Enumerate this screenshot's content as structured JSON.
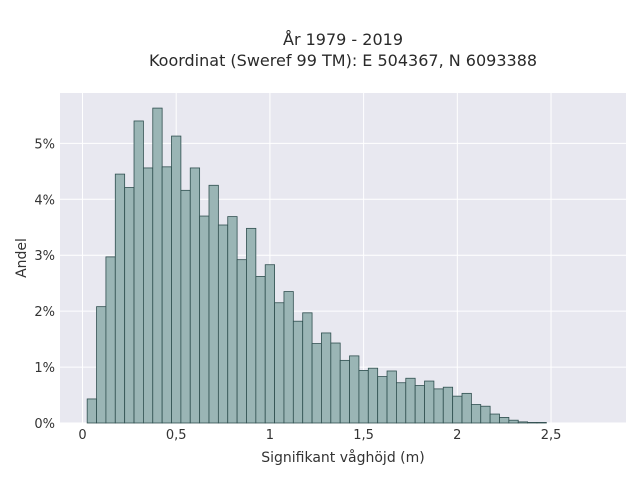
{
  "chart_data": {
    "type": "bar",
    "title_line1": "År 1979 - 2019",
    "title_line2": "Koordinat (Sweref 99 TM): E 504367, N 6093388",
    "xlabel": "Signifikant våghöjd (m)",
    "ylabel": "Andel",
    "x_ticks": [
      {
        "value": 0,
        "label": "0"
      },
      {
        "value": 0.5,
        "label": "0,5"
      },
      {
        "value": 1,
        "label": "1"
      },
      {
        "value": 1.5,
        "label": "1,5"
      },
      {
        "value": 2,
        "label": "2"
      },
      {
        "value": 2.5,
        "label": "2,5"
      }
    ],
    "y_ticks": [
      {
        "value": 0,
        "label": "0%"
      },
      {
        "value": 1,
        "label": "1%"
      },
      {
        "value": 2,
        "label": "2%"
      },
      {
        "value": 3,
        "label": "3%"
      },
      {
        "value": 4,
        "label": "4%"
      },
      {
        "value": 5,
        "label": "5%"
      }
    ],
    "xlim": [
      -0.12,
      2.9
    ],
    "ylim": [
      0,
      5.9
    ],
    "bin_start": 0.025,
    "bin_width": 0.05,
    "values": [
      0.43,
      2.08,
      2.97,
      4.45,
      4.21,
      5.4,
      4.56,
      5.63,
      4.58,
      5.13,
      4.16,
      4.56,
      3.7,
      4.25,
      3.54,
      3.69,
      2.92,
      3.48,
      2.62,
      2.83,
      2.15,
      2.35,
      1.82,
      1.97,
      1.42,
      1.61,
      1.43,
      1.12,
      1.2,
      0.94,
      0.98,
      0.83,
      0.93,
      0.72,
      0.8,
      0.67,
      0.75,
      0.61,
      0.64,
      0.48,
      0.53,
      0.33,
      0.3,
      0.16,
      0.1,
      0.05,
      0.02,
      0.01,
      0.01
    ],
    "bar_color": "#9ab5b5",
    "bar_edge_color": "#2f4f4f",
    "plot_background": "#e8e8f0",
    "grid": true,
    "grid_color": "#ffffff"
  }
}
